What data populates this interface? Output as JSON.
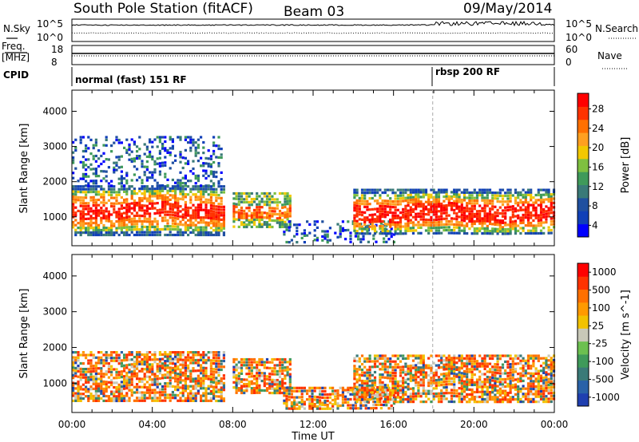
{
  "header": {
    "station": "South Pole Station (fitACF)",
    "beam": "Beam 03",
    "date": "09/May/2014"
  },
  "aux_labels": {
    "nsky": "N.Sky",
    "nsearch": "N.Search",
    "freq_line1": "Freq.",
    "freq_line2": "[MHz]",
    "nave": "Nave",
    "cpid": "CPID",
    "cpid_mode_1": "normal (fast) 151 RF",
    "cpid_mode_2": "rbsp 200 RF",
    "noise_ticks_left": [
      "10^5",
      "10^0"
    ],
    "noise_ticks_right": [
      "10^5",
      "10^0"
    ],
    "freq_ticks_left": [
      "18",
      "8"
    ],
    "nave_ticks_right": [
      "60",
      "0"
    ]
  },
  "chart_data": [
    {
      "type": "heatmap",
      "name": "power",
      "xlabel": "Time UT",
      "ylabel": "Slant Range [km]",
      "xlim_hours": [
        0,
        24
      ],
      "ylim": [
        180,
        4600
      ],
      "x_ticks": [
        "00:00",
        "04:00",
        "08:00",
        "12:00",
        "16:00",
        "20:00",
        "00:00"
      ],
      "y_ticks": [
        1000,
        2000,
        3000,
        4000
      ],
      "colorbar": {
        "label": "Power [dB]",
        "ticks": [
          "4",
          "8",
          "12",
          "16",
          "20",
          "24",
          "28"
        ],
        "colors": [
          "#0000ff",
          "#1040b8",
          "#2050a0",
          "#3a7a78",
          "#3f9a5a",
          "#7fc040",
          "#f2c800",
          "#ffa020",
          "#ff7000",
          "#ff3300",
          "#ff0000"
        ]
      },
      "echo_regions": [
        {
          "t0": 0.0,
          "t1": 7.6,
          "r0": 520,
          "r1": 1900,
          "level": "high"
        },
        {
          "t0": 0.0,
          "t1": 7.4,
          "r0": 1900,
          "r1": 3300,
          "level": "low"
        },
        {
          "t0": 8.0,
          "t1": 10.9,
          "r0": 700,
          "r1": 1700,
          "level": "medium"
        },
        {
          "t0": 10.5,
          "t1": 16.0,
          "r0": 300,
          "r1": 900,
          "level": "low"
        },
        {
          "t0": 14.0,
          "t1": 24.0,
          "r0": 500,
          "r1": 1800,
          "level": "high"
        }
      ]
    },
    {
      "type": "heatmap",
      "name": "velocity",
      "xlabel": "Time UT",
      "ylabel": "Slant Range [km]",
      "xlim_hours": [
        0,
        24
      ],
      "ylim": [
        180,
        4600
      ],
      "x_ticks": [
        "00:00",
        "04:00",
        "08:00",
        "12:00",
        "16:00",
        "20:00",
        "00:00"
      ],
      "y_ticks": [
        1000,
        2000,
        3000,
        4000
      ],
      "colorbar": {
        "label": "Velocity [m s^-1]",
        "ticks": [
          "1000",
          "500",
          "100",
          "25",
          "-25",
          "-100",
          "-500",
          "-1000"
        ],
        "colors": [
          "#1f3fb0",
          "#2a62a8",
          "#3a7a78",
          "#3f9a5a",
          "#6cc050",
          "#c8c8b8",
          "#f2c200",
          "#ff9a00",
          "#ff7000",
          "#ff3300",
          "#ff0000"
        ]
      },
      "echo_regions": [
        {
          "t0": 0.0,
          "t1": 7.6,
          "r0": 520,
          "r1": 1900,
          "level": "mixed"
        },
        {
          "t0": 8.0,
          "t1": 10.9,
          "r0": 700,
          "r1": 1700,
          "level": "mixed"
        },
        {
          "t0": 10.5,
          "t1": 16.0,
          "r0": 300,
          "r1": 900,
          "level": "mixed"
        },
        {
          "t0": 14.0,
          "t1": 24.0,
          "r0": 500,
          "r1": 1800,
          "level": "mixed"
        }
      ]
    }
  ]
}
